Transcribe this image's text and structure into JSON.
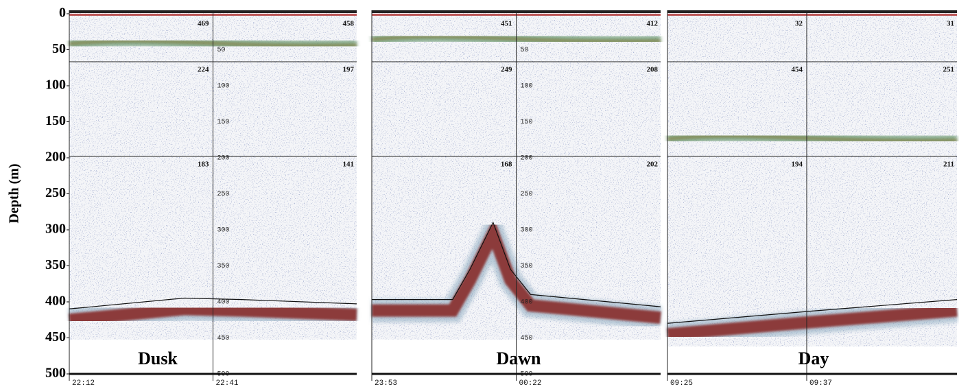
{
  "y_axis": {
    "label": "Depth (m)",
    "lim": [
      0,
      500
    ],
    "ticks": [
      0,
      50,
      100,
      150,
      200,
      250,
      300,
      350,
      400,
      450,
      500
    ]
  },
  "panels": [
    {
      "label": "Dusk",
      "times": [
        "22:12",
        "22:41"
      ],
      "inner_ticks": [
        50,
        100,
        150,
        200,
        250,
        300,
        350,
        400,
        450,
        500
      ],
      "cell_values": [
        "469",
        "458",
        "224",
        "197",
        "183",
        "141"
      ]
    },
    {
      "label": "Dawn",
      "times": [
        "23:53",
        "00:22"
      ],
      "inner_ticks": [
        50,
        100,
        150,
        200,
        250,
        300,
        350,
        400,
        450,
        500
      ],
      "cell_values": [
        "451",
        "412",
        "249",
        "208",
        "168",
        "202"
      ]
    },
    {
      "label": "Day",
      "times": [
        "09:25",
        "09:37"
      ],
      "cell_values": [
        "32",
        "31",
        "454",
        "251",
        "194",
        "211"
      ]
    }
  ]
}
